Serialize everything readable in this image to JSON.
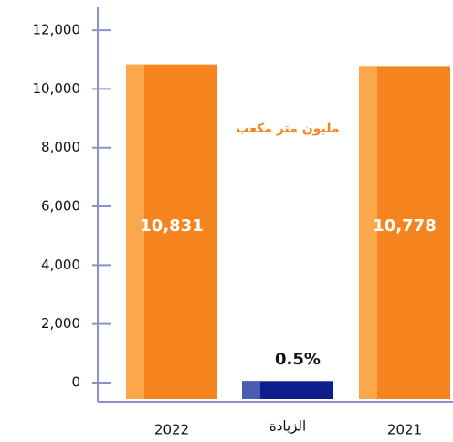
{
  "chart_data": {
    "type": "bar",
    "categories": [
      "2022",
      "الزيادة",
      "2021"
    ],
    "values": [
      10831,
      53,
      10778
    ],
    "value_labels": [
      "10,831",
      null,
      "10,778"
    ],
    "colors": [
      "#f5841f",
      "#0c1f8c",
      "#f5841f"
    ],
    "strip_colors": [
      "#fba84c",
      "#4a5db3",
      "#fba84c"
    ],
    "annotations": [
      "مليون متر مكعب",
      "0.5%"
    ],
    "ylim": [
      -560,
      12780
    ],
    "yticks": [
      0,
      {
        "value": 2000,
        "label": "2,000"
      },
      {
        "value": 4000,
        "label": "4,000"
      },
      {
        "value": 6000,
        "label": "6,000"
      },
      {
        "value": 8000,
        "label": "8,000"
      },
      {
        "value": 10000,
        "label": "10,000"
      },
      {
        "value": 12000,
        "label": "12,000"
      }
    ],
    "axis_color": "#8b90cc"
  }
}
